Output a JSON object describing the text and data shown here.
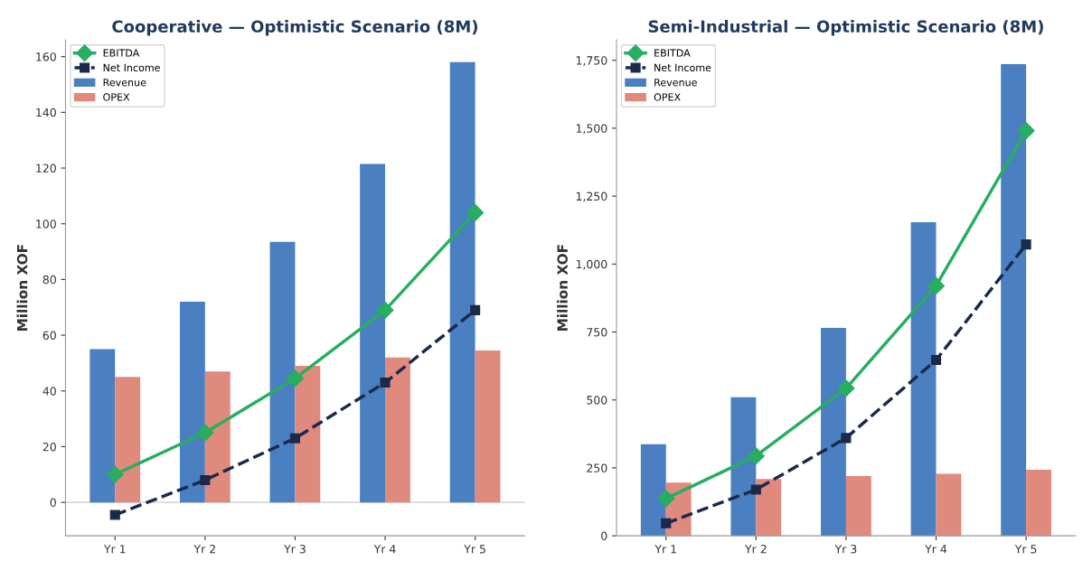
{
  "chart_data": [
    {
      "type": "bar",
      "title": "Cooperative — Optimistic Scenario (8M)",
      "ylabel": "Million XOF",
      "categories": [
        "Yr 1",
        "Yr 2",
        "Yr 3",
        "Yr 4",
        "Yr 5"
      ],
      "series": [
        {
          "name": "EBITDA",
          "type": "line",
          "color": "#27ae60",
          "marker": "diamond",
          "line_style": "solid",
          "values": [
            10,
            25,
            44.5,
            69,
            104
          ]
        },
        {
          "name": "Net Income",
          "type": "line",
          "color": "#1b2a4a",
          "marker": "square",
          "line_style": "dashed",
          "values": [
            -4.5,
            8,
            23,
            43,
            69
          ]
        },
        {
          "name": "Revenue",
          "color": "#4a7fc1",
          "values": [
            55,
            72,
            93.5,
            121.5,
            158
          ]
        },
        {
          "name": "OPEX",
          "color": "#e08a7e",
          "values": [
            45,
            47,
            49,
            52,
            54.5
          ]
        }
      ],
      "ylim": [
        -12,
        166
      ],
      "yticks": [
        0,
        20,
        40,
        60,
        80,
        100,
        120,
        140,
        160
      ],
      "ref_lines": [
        {
          "axis": "y",
          "value": 0,
          "color": "#cccccc"
        }
      ],
      "grid": false,
      "legend": "top left"
    },
    {
      "type": "bar",
      "title": "Semi-Industrial — Optimistic Scenario (8M)",
      "ylabel": "Million XOF",
      "categories": [
        "Yr 1",
        "Yr 2",
        "Yr 3",
        "Yr 4",
        "Yr 5"
      ],
      "series": [
        {
          "name": "EBITDA",
          "type": "line",
          "color": "#27ae60",
          "marker": "diamond",
          "line_style": "solid",
          "values": [
            137,
            294,
            543,
            920,
            1491
          ]
        },
        {
          "name": "Net Income",
          "type": "line",
          "color": "#1b2a4a",
          "marker": "square",
          "line_style": "dashed",
          "values": [
            46,
            170,
            360,
            647,
            1072
          ]
        },
        {
          "name": "Revenue",
          "color": "#4a7fc1",
          "values": [
            337,
            510,
            765,
            1154,
            1736
          ]
        },
        {
          "name": "OPEX",
          "color": "#e08a7e",
          "values": [
            196,
            209,
            220,
            228,
            243
          ]
        }
      ],
      "ylim": [
        0,
        1825
      ],
      "yticks": [
        0,
        {
          "value": 250,
          "label": "250"
        },
        {
          "value": 500,
          "label": "500"
        },
        {
          "value": 750,
          "label": "750"
        },
        {
          "value": 1000,
          "label": "1,000"
        },
        {
          "value": 1250,
          "label": "1,250"
        },
        {
          "value": 1500,
          "label": "1,500"
        },
        {
          "value": 1750,
          "label": "1,750"
        }
      ],
      "grid": false,
      "legend": "top left"
    }
  ]
}
